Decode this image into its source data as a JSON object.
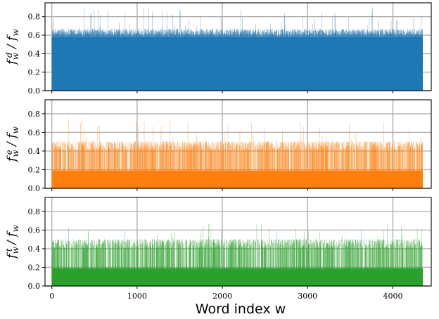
{
  "figure": {
    "xlabel": "Word index w"
  },
  "chart_data": [
    {
      "type": "bar",
      "panel": "top",
      "ylabel": "f_w^d / f_w",
      "color": "#1f77b4",
      "n_words": 4350,
      "xlim": [
        -80,
        4450
      ],
      "ylim": [
        0.0,
        0.95
      ],
      "xticks": [
        0,
        1000,
        2000,
        3000,
        4000
      ],
      "yticks": [
        0.0,
        0.2,
        0.4,
        0.6,
        0.8
      ],
      "grid": true,
      "values_summary": {
        "base_level": 0.58,
        "typical_max": 0.67,
        "peak_max": 0.91
      }
    },
    {
      "type": "bar",
      "panel": "middle",
      "ylabel": "f_w^e / f_w",
      "color": "#ff7f0e",
      "n_words": 4350,
      "xlim": [
        -80,
        4450
      ],
      "ylim": [
        0.0,
        0.95
      ],
      "xticks": [
        0,
        1000,
        2000,
        3000,
        4000
      ],
      "yticks": [
        0.0,
        0.2,
        0.4,
        0.6,
        0.8
      ],
      "grid": true,
      "values_summary": {
        "base_level": 0.2,
        "typical_max": 0.5,
        "peak_max": 0.75
      }
    },
    {
      "type": "bar",
      "panel": "bottom",
      "ylabel": "f_w^t / f_w",
      "color": "#2ca02c",
      "n_words": 4350,
      "xlim": [
        -80,
        4450
      ],
      "ylim": [
        0.0,
        0.95
      ],
      "xticks": [
        0,
        1000,
        2000,
        3000,
        4000
      ],
      "yticks": [
        0.0,
        0.2,
        0.4,
        0.6,
        0.8
      ],
      "grid": true,
      "values_summary": {
        "base_level": 0.2,
        "typical_max": 0.5,
        "peak_max": 0.67
      }
    }
  ]
}
